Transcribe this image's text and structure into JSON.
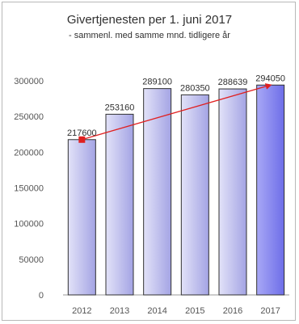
{
  "chart_data": {
    "type": "bar",
    "title": "Givertjenesten per 1. juni 2017",
    "subtitle": "- sammenl. med samme mnd. tidligere år",
    "categories": [
      "2012",
      "2013",
      "2014",
      "2015",
      "2016",
      "2017"
    ],
    "values": [
      217600,
      253160,
      289100,
      280350,
      288639,
      294050
    ],
    "data_labels": [
      "217600",
      "253160",
      "289100",
      "280350",
      "288639",
      "294050"
    ],
    "yticks": [
      "0",
      "50000",
      "100000",
      "150000",
      "200000",
      "250000",
      "300000"
    ],
    "ylim": [
      0,
      325000
    ],
    "grid": false,
    "legend": "none",
    "trendline": {
      "from": 217600,
      "to": 294050,
      "color": "#e02020"
    },
    "colors": {
      "bar_light": "#dcdcf5",
      "bar_dark": "#9898e0",
      "bar_2017": "#7f7ff0",
      "bar_border": "#303030",
      "trend": "#e02020"
    }
  }
}
